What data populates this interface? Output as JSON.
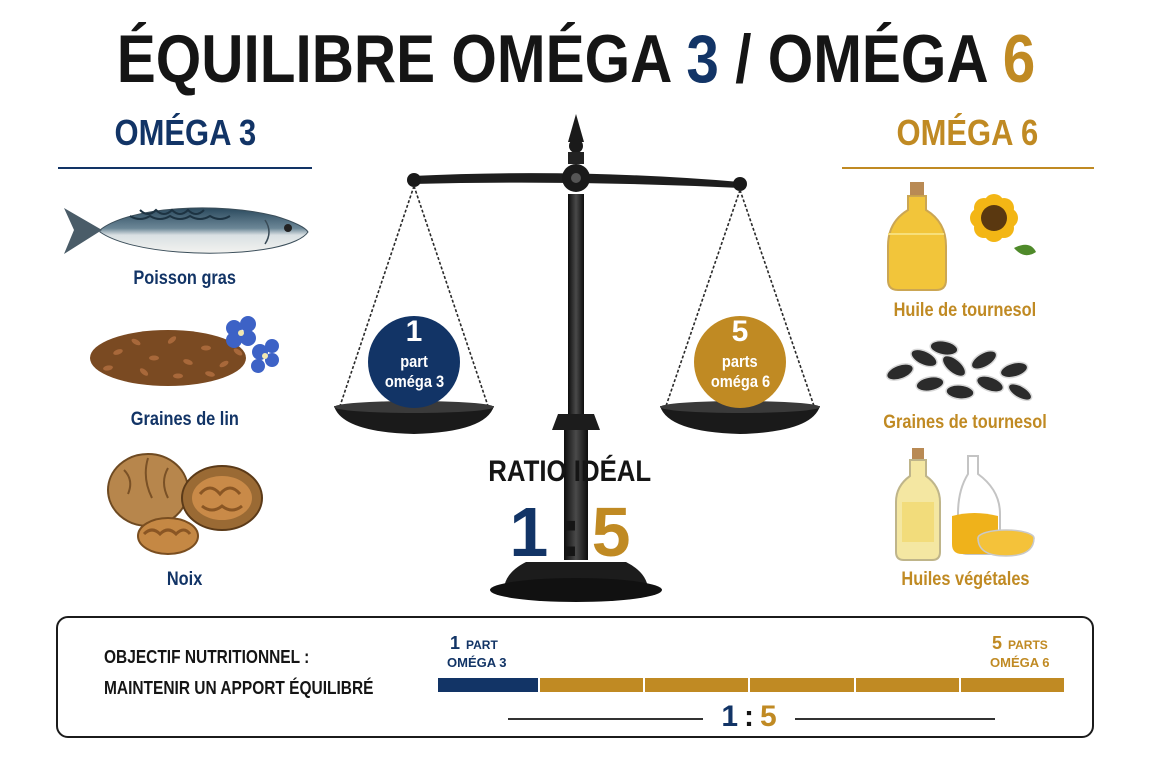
{
  "title": {
    "part1": "ÉQUILIBRE OMÉGA ",
    "num3": "3",
    "sep": " / OMÉGA ",
    "num6": "6"
  },
  "omega3": {
    "heading": "OMÉGA 3",
    "items": [
      {
        "label": "Poisson gras",
        "icon": "mackerel-fish-icon"
      },
      {
        "label": "Graines de lin",
        "icon": "flax-seeds-icon"
      },
      {
        "label": "Noix",
        "icon": "walnuts-icon"
      }
    ]
  },
  "omega6": {
    "heading": "OMÉGA 6",
    "items": [
      {
        "label": "Huile de tournesol",
        "icon": "sunflower-oil-icon"
      },
      {
        "label": "Graines de tournesol",
        "icon": "sunflower-seeds-icon"
      },
      {
        "label": "Huiles végétales",
        "icon": "vegetable-oils-icon"
      }
    ]
  },
  "scale": {
    "left_num": "1",
    "left_unit": "part",
    "left_omega": "oméga 3",
    "right_num": "5",
    "right_unit": "parts",
    "right_omega": "oméga 6"
  },
  "ratio": {
    "label": "RATIO IDÉAL",
    "left": "1",
    "colon": ":",
    "right": "5"
  },
  "goal": {
    "line1": "OBJECTIF NUTRITIONNEL :",
    "line2": "MAINTENIR UN APPORT ÉQUILIBRÉ",
    "left_num": "1",
    "left_unit": "PART",
    "left_omega": "OMÉGA 3",
    "right_num": "5",
    "right_unit": "PARTS",
    "right_omega": "OMÉGA 6",
    "ratio_left": "1",
    "ratio_colon": ":",
    "ratio_right": "5",
    "omega3_parts": 1,
    "omega6_parts": 5
  },
  "colors": {
    "omega3": "#123466",
    "omega6": "#c08a23",
    "text": "#151515"
  }
}
